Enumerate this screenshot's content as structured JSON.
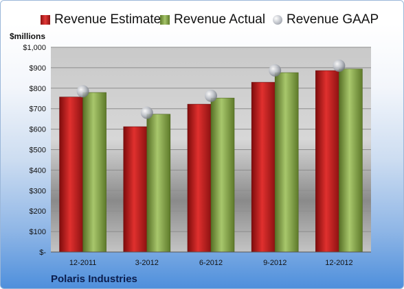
{
  "chart_data": {
    "type": "bar",
    "ylabel": "$millions",
    "categories": [
      "12-2011",
      "3-2012",
      "6-2012",
      "9-2012",
      "12-2012"
    ],
    "series": [
      {
        "name": "Revenue Estimate",
        "kind": "bar",
        "color": "#d4201f",
        "values": [
          757,
          612,
          722,
          829,
          886
        ]
      },
      {
        "name": "Revenue Actual",
        "kind": "bar",
        "color": "#8fb04d",
        "values": [
          779,
          673,
          752,
          876,
          894
        ]
      },
      {
        "name": "Revenue GAAP",
        "kind": "marker",
        "color": "#b8bcc4",
        "values": [
          785,
          680,
          763,
          887,
          910
        ]
      }
    ],
    "ylim": [
      0,
      1000
    ],
    "yticks": [
      0,
      100,
      200,
      300,
      400,
      500,
      600,
      700,
      800,
      900,
      1000
    ],
    "ytick_labels": [
      "$-",
      "$100",
      "$200",
      "$300",
      "$400",
      "$500",
      "$600",
      "$700",
      "$800",
      "$900",
      "$1,000"
    ],
    "grid": true,
    "legend_position": "top",
    "footer": "Polaris Industries"
  }
}
